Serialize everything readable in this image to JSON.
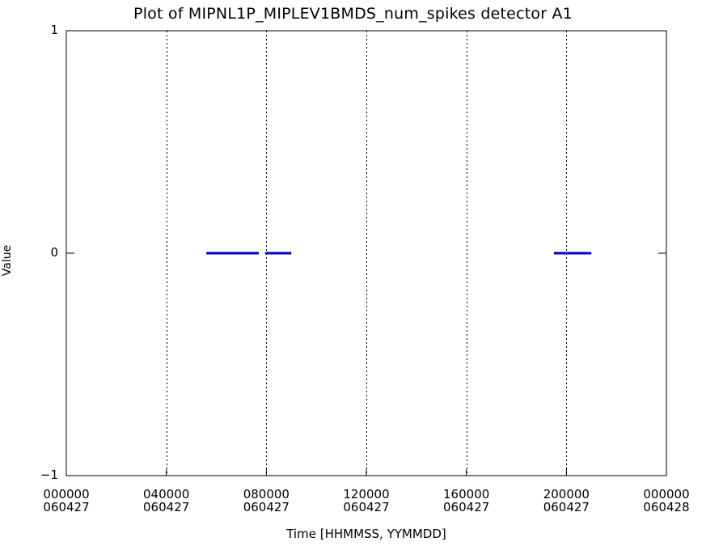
{
  "chart_data": {
    "type": "scatter",
    "title": "Plot of  MIPNL1P_MIPLEV1BMDS_num_spikes detector A1",
    "xlabel": "Time [HHMMSS, YYMMDD]",
    "ylabel": "Value",
    "xlim": [
      "060427 000000",
      "060428 000000"
    ],
    "ylim": [
      -1,
      1
    ],
    "yticks": [
      {
        "value": 1,
        "label": "1"
      },
      {
        "value": 0,
        "label": "0"
      },
      {
        "value": -1,
        "label": "−1"
      }
    ],
    "xticks": [
      {
        "time": "000000",
        "date": "060427",
        "hours": 0
      },
      {
        "time": "040000",
        "date": "060427",
        "hours": 4
      },
      {
        "time": "080000",
        "date": "060427",
        "hours": 8
      },
      {
        "time": "120000",
        "date": "060427",
        "hours": 12
      },
      {
        "time": "160000",
        "date": "060427",
        "hours": 16
      },
      {
        "time": "200000",
        "date": "060427",
        "hours": 20
      },
      {
        "time": "000000",
        "date": "060428",
        "hours": 24
      }
    ],
    "vertical_dotted_lines_hours": [
      4,
      8,
      12,
      16,
      20
    ],
    "series": [
      {
        "color": "#0000cc",
        "segments": [
          {
            "start_hours": 5.6,
            "end_hours": 7.7,
            "value": 0
          },
          {
            "start_hours": 7.95,
            "end_hours": 9.0,
            "value": 0
          },
          {
            "start_hours": 19.5,
            "end_hours": 21.0,
            "value": 0
          }
        ]
      }
    ],
    "grid": false
  }
}
